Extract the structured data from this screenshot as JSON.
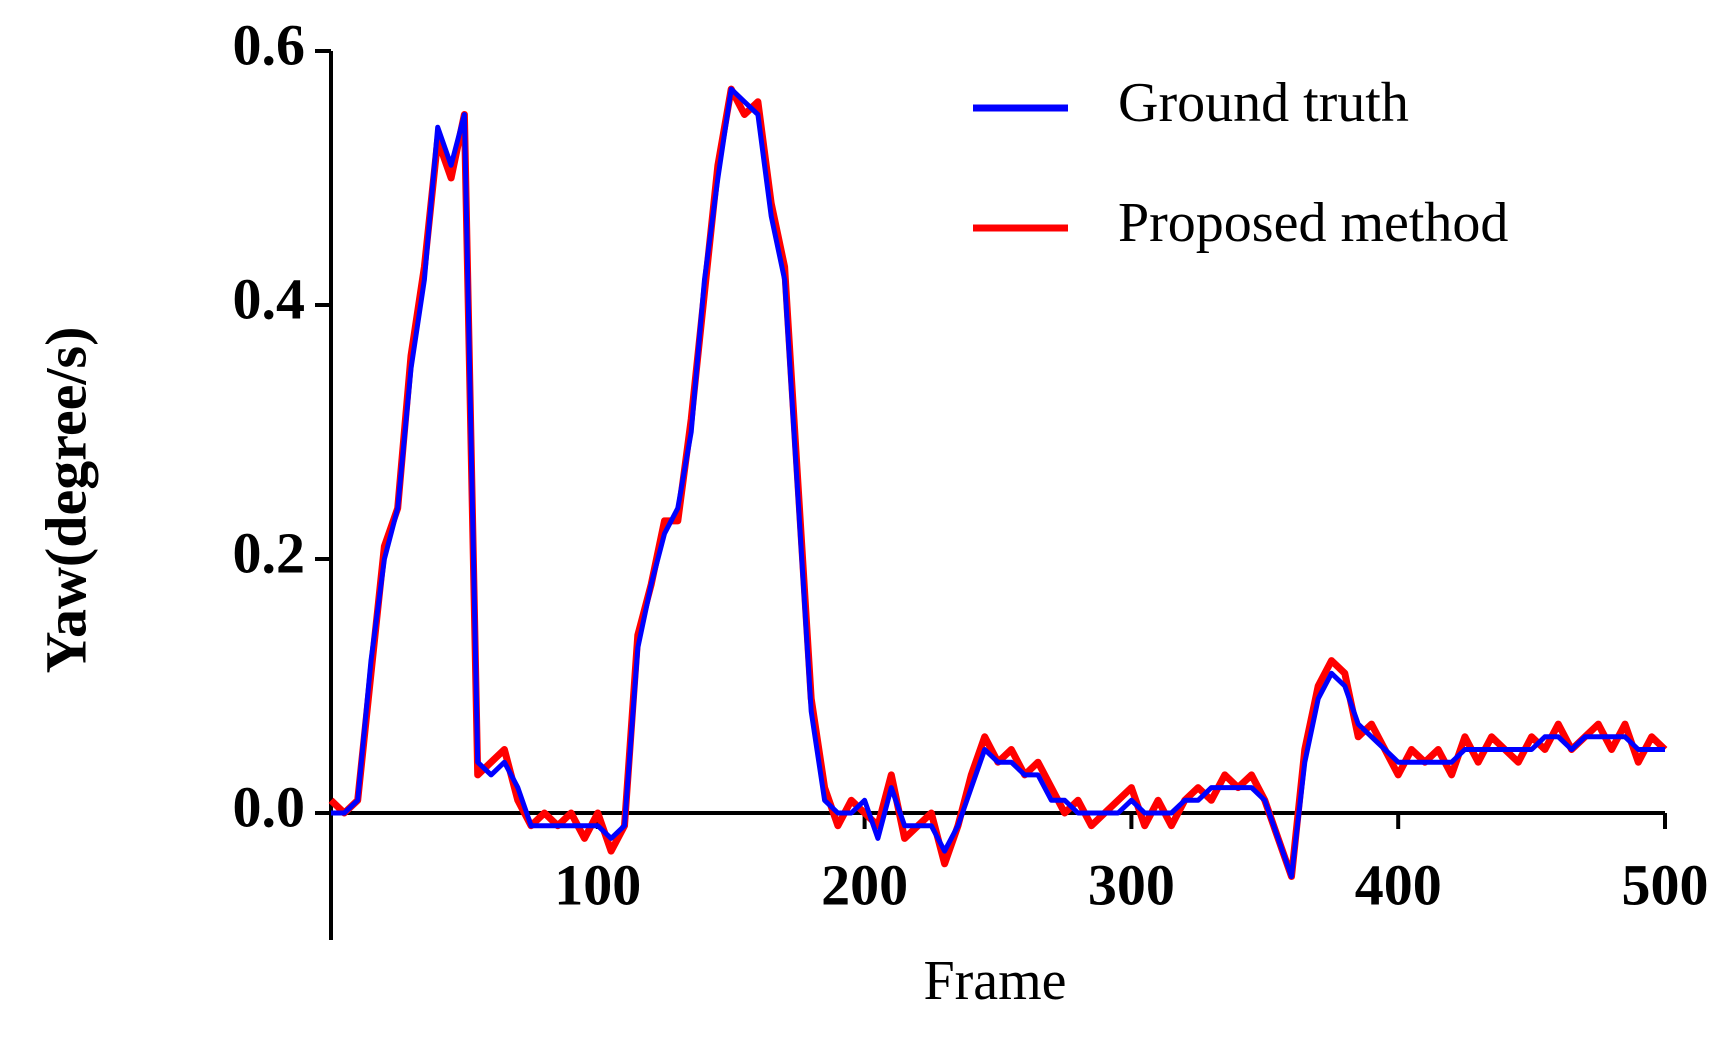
{
  "chart_data": {
    "type": "line",
    "xlabel": "Frame",
    "ylabel": "Yaw(degree/s)",
    "xlim": [
      0,
      500
    ],
    "ylim": [
      -0.1,
      0.6
    ],
    "xticks": [
      100,
      200,
      300,
      400,
      500
    ],
    "yticks": [
      {
        "value": 0,
        "label": "0.0"
      },
      0.2,
      0.4,
      0.6
    ],
    "legend": "upper right",
    "x": [
      0,
      5,
      10,
      15,
      20,
      25,
      30,
      35,
      40,
      45,
      50,
      55,
      60,
      65,
      70,
      75,
      80,
      85,
      90,
      95,
      100,
      105,
      110,
      115,
      120,
      125,
      130,
      135,
      140,
      145,
      150,
      155,
      160,
      165,
      170,
      175,
      180,
      185,
      190,
      195,
      200,
      205,
      210,
      215,
      220,
      225,
      230,
      235,
      240,
      245,
      250,
      255,
      260,
      265,
      270,
      275,
      280,
      285,
      290,
      295,
      300,
      305,
      310,
      315,
      320,
      325,
      330,
      335,
      340,
      345,
      350,
      355,
      360,
      365,
      370,
      375,
      380,
      385,
      390,
      395,
      400,
      405,
      410,
      415,
      420,
      425,
      430,
      435,
      440,
      445,
      450,
      455,
      460,
      465,
      470,
      475,
      480,
      485,
      490,
      495,
      500
    ],
    "series": [
      {
        "name": "Proposed method",
        "color": "#ff0000",
        "values": [
          0.01,
          0.0,
          0.01,
          0.11,
          0.21,
          0.24,
          0.36,
          0.43,
          0.53,
          0.5,
          0.55,
          0.03,
          0.04,
          0.05,
          0.01,
          -0.01,
          0.0,
          -0.01,
          0.0,
          -0.02,
          0.0,
          -0.03,
          -0.01,
          0.14,
          0.18,
          0.23,
          0.23,
          0.31,
          0.41,
          0.51,
          0.57,
          0.55,
          0.56,
          0.48,
          0.43,
          0.26,
          0.09,
          0.02,
          -0.01,
          0.01,
          0.0,
          -0.01,
          0.03,
          -0.02,
          -0.01,
          0.0,
          -0.04,
          -0.01,
          0.03,
          0.06,
          0.04,
          0.05,
          0.03,
          0.04,
          0.02,
          0.0,
          0.01,
          -0.01,
          0.0,
          0.01,
          0.02,
          -0.01,
          0.01,
          -0.01,
          0.01,
          0.02,
          0.01,
          0.03,
          0.02,
          0.03,
          0.01,
          -0.02,
          -0.05,
          0.05,
          0.1,
          0.12,
          0.11,
          0.06,
          0.07,
          0.05,
          0.03,
          0.05,
          0.04,
          0.05,
          0.03,
          0.06,
          0.04,
          0.06,
          0.05,
          0.04,
          0.06,
          0.05,
          0.07,
          0.05,
          0.06,
          0.07,
          0.05,
          0.07,
          0.04,
          0.06,
          0.05
        ]
      },
      {
        "name": "Ground truth",
        "color": "#0000ff",
        "values": [
          0.0,
          0.0,
          0.01,
          0.12,
          0.2,
          0.24,
          0.35,
          0.42,
          0.54,
          0.51,
          0.55,
          0.04,
          0.03,
          0.04,
          0.02,
          -0.01,
          -0.01,
          -0.01,
          -0.01,
          -0.01,
          -0.01,
          -0.02,
          -0.01,
          0.13,
          0.18,
          0.22,
          0.24,
          0.3,
          0.42,
          0.5,
          0.57,
          0.56,
          0.55,
          0.47,
          0.42,
          0.25,
          0.08,
          0.01,
          0.0,
          0.0,
          0.01,
          -0.02,
          0.02,
          -0.01,
          -0.01,
          -0.01,
          -0.03,
          -0.01,
          0.02,
          0.05,
          0.04,
          0.04,
          0.03,
          0.03,
          0.01,
          0.01,
          0.0,
          0.0,
          0.0,
          0.0,
          0.01,
          0.0,
          0.0,
          0.0,
          0.01,
          0.01,
          0.02,
          0.02,
          0.02,
          0.02,
          0.01,
          -0.02,
          -0.05,
          0.04,
          0.09,
          0.11,
          0.1,
          0.07,
          0.06,
          0.05,
          0.04,
          0.04,
          0.04,
          0.04,
          0.04,
          0.05,
          0.05,
          0.05,
          0.05,
          0.05,
          0.05,
          0.06,
          0.06,
          0.05,
          0.06,
          0.06,
          0.06,
          0.06,
          0.05,
          0.05,
          0.05
        ]
      }
    ]
  }
}
